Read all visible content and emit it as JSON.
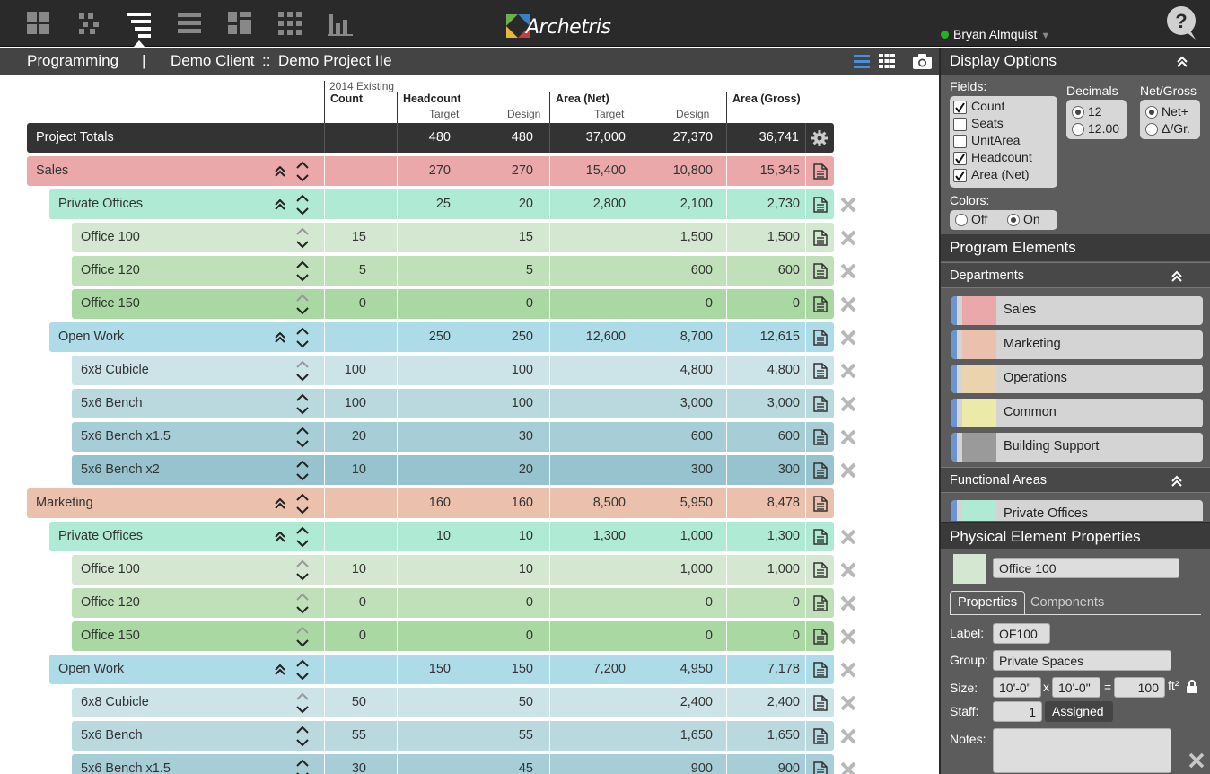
{
  "app": {
    "name": "Archetris",
    "user": "Bryan Almquist",
    "help": "?"
  },
  "breadcrumb": {
    "section": "Programming",
    "separator": "|",
    "client": "Demo Client",
    "sep2": "::",
    "project": "Demo Project IIe"
  },
  "columns": {
    "count_super": "2014 Existing",
    "count": "Count",
    "headcount": "Headcount",
    "target": "Target",
    "design": "Design",
    "area_net": "Area (Net)",
    "target2": "Target",
    "design2": "Design",
    "area_gross": "Area (Gross)"
  },
  "totals": {
    "label": "Project Totals",
    "hc_target": "480",
    "hc_design": "480",
    "area_target": "37,000",
    "area_design": "27,370",
    "gross": "36,741"
  },
  "rows": [
    {
      "label": "Sales",
      "count": "",
      "hc_t": "270",
      "hc_d": "270",
      "a_t": "15,400",
      "a_d": "10,800",
      "g": "15,345",
      "level": 0,
      "color": "#eba8ab"
    },
    {
      "label": "Private Offices",
      "count": "",
      "hc_t": "25",
      "hc_d": "20",
      "a_t": "2,800",
      "a_d": "2,100",
      "g": "2,730",
      "level": 1,
      "color": "#aeead4"
    },
    {
      "label": "Office 100",
      "count": "15",
      "hc_t": "",
      "hc_d": "15",
      "a_t": "",
      "a_d": "1,500",
      "g": "1,500",
      "level": 2,
      "color": "#d4e7d0"
    },
    {
      "label": "Office 120",
      "count": "5",
      "hc_t": "",
      "hc_d": "5",
      "a_t": "",
      "a_d": "600",
      "g": "600",
      "level": 2,
      "color": "#bfe0b9"
    },
    {
      "label": "Office 150",
      "count": "0",
      "hc_t": "",
      "hc_d": "0",
      "a_t": "",
      "a_d": "0",
      "g": "0",
      "level": 2,
      "color": "#a9d8a2"
    },
    {
      "label": "Open Work",
      "count": "",
      "hc_t": "250",
      "hc_d": "250",
      "a_t": "12,600",
      "a_d": "8,700",
      "g": "12,615",
      "level": 1,
      "color": "#addbe8"
    },
    {
      "label": "6x8 Cubicle",
      "count": "100",
      "hc_t": "",
      "hc_d": "100",
      "a_t": "",
      "a_d": "4,800",
      "g": "4,800",
      "level": 2,
      "color": "#cce3e7"
    },
    {
      "label": "5x6 Bench",
      "count": "100",
      "hc_t": "",
      "hc_d": "100",
      "a_t": "",
      "a_d": "3,000",
      "g": "3,000",
      "level": 2,
      "color": "#b9d9df"
    },
    {
      "label": "5x6 Bench x1.5",
      "count": "20",
      "hc_t": "",
      "hc_d": "30",
      "a_t": "",
      "a_d": "600",
      "g": "600",
      "level": 2,
      "color": "#a7ced6"
    },
    {
      "label": "5x6 Bench x2",
      "count": "10",
      "hc_t": "",
      "hc_d": "20",
      "a_t": "",
      "a_d": "300",
      "g": "300",
      "level": 2,
      "color": "#96c3cd"
    },
    {
      "label": "Marketing",
      "count": "",
      "hc_t": "160",
      "hc_d": "160",
      "a_t": "8,500",
      "a_d": "5,950",
      "g": "8,478",
      "level": 0,
      "color": "#ebc0ad"
    },
    {
      "label": "Private Offices",
      "count": "",
      "hc_t": "10",
      "hc_d": "10",
      "a_t": "1,300",
      "a_d": "1,000",
      "g": "1,300",
      "level": 1,
      "color": "#aeead4"
    },
    {
      "label": "Office 100",
      "count": "10",
      "hc_t": "",
      "hc_d": "10",
      "a_t": "",
      "a_d": "1,000",
      "g": "1,000",
      "level": 2,
      "color": "#d4e7d0"
    },
    {
      "label": "Office 120",
      "count": "0",
      "hc_t": "",
      "hc_d": "0",
      "a_t": "",
      "a_d": "0",
      "g": "0",
      "level": 2,
      "color": "#bfe0b9"
    },
    {
      "label": "Office 150",
      "count": "0",
      "hc_t": "",
      "hc_d": "0",
      "a_t": "",
      "a_d": "0",
      "g": "0",
      "level": 2,
      "color": "#a9d8a2"
    },
    {
      "label": "Open Work",
      "count": "",
      "hc_t": "150",
      "hc_d": "150",
      "a_t": "7,200",
      "a_d": "4,950",
      "g": "7,178",
      "level": 1,
      "color": "#addbe8"
    },
    {
      "label": "6x8 Cubicle",
      "count": "50",
      "hc_t": "",
      "hc_d": "50",
      "a_t": "",
      "a_d": "2,400",
      "g": "2,400",
      "level": 2,
      "color": "#cce3e7"
    },
    {
      "label": "5x6 Bench",
      "count": "55",
      "hc_t": "",
      "hc_d": "55",
      "a_t": "",
      "a_d": "1,650",
      "g": "1,650",
      "level": 2,
      "color": "#b9d9df"
    },
    {
      "label": "5x6 Bench x1.5",
      "count": "30",
      "hc_t": "",
      "hc_d": "45",
      "a_t": "",
      "a_d": "900",
      "g": "900",
      "level": 2,
      "color": "#a7ced6"
    }
  ],
  "display_options": {
    "title": "Display Options",
    "fields_label": "Fields:",
    "fields": [
      {
        "label": "Count",
        "checked": true
      },
      {
        "label": "Seats",
        "checked": false
      },
      {
        "label": "UnitArea",
        "checked": false
      },
      {
        "label": "Headcount",
        "checked": true
      },
      {
        "label": "Area (Net)",
        "checked": true
      }
    ],
    "decimals_label": "Decimals",
    "decimals": [
      {
        "label": "12",
        "selected": true
      },
      {
        "label": "12.00",
        "selected": false
      }
    ],
    "netgross_label": "Net/Gross",
    "netgross": [
      {
        "label": "Net+",
        "selected": true
      },
      {
        "label": "Δ/Gr.",
        "selected": false
      }
    ],
    "colors_label": "Colors:",
    "colors": [
      {
        "label": "Off",
        "selected": false
      },
      {
        "label": "On",
        "selected": true
      }
    ]
  },
  "program_elements": {
    "title": "Program Elements",
    "departments_label": "Departments",
    "departments": [
      {
        "name": "Sales",
        "color": "#eba8ab"
      },
      {
        "name": "Marketing",
        "color": "#ebc0ad"
      },
      {
        "name": "Operations",
        "color": "#ebd4ad"
      },
      {
        "name": "Common",
        "color": "#ebeaa8"
      },
      {
        "name": "Building Support",
        "color": "#9a9a9a"
      }
    ],
    "functional_label": "Functional Areas",
    "functional": [
      {
        "name": "Private Offices",
        "color": "#aeead4"
      }
    ]
  },
  "physical": {
    "title": "Physical Element Properties",
    "name": "Office 100",
    "swatch": "#d4e7d0",
    "tab_properties": "Properties",
    "tab_components": "Components",
    "label_label": "Label:",
    "label_value": "OF100",
    "group_label": "Group:",
    "group_value": "Private Spaces",
    "size_label": "Size:",
    "size_w": "10'-0\"",
    "size_x": "x",
    "size_h": "10'-0\"",
    "size_eq": "=",
    "size_area": "100",
    "size_unit": "ft²",
    "staff_label": "Staff:",
    "staff_value": "1",
    "staff_type": "Assigned",
    "notes_label": "Notes:"
  }
}
